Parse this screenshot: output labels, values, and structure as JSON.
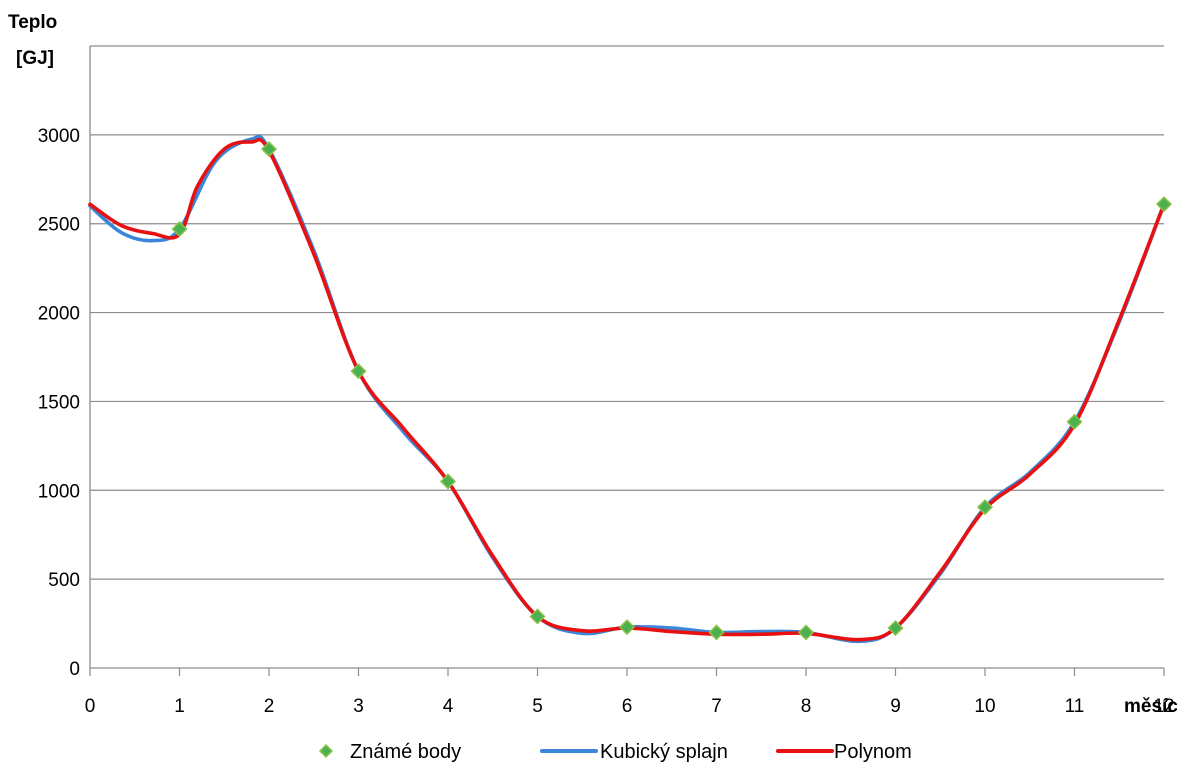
{
  "chart_data": {
    "type": "line",
    "ylabel_line1": "Teplo",
    "ylabel_line2": "[GJ]",
    "xlabel": "měsíc",
    "xlim": [
      0,
      12
    ],
    "ylim": [
      0,
      3500
    ],
    "y_ticks": [
      0,
      500,
      1000,
      1500,
      2000,
      2500,
      3000
    ],
    "x_ticks": [
      0,
      1,
      2,
      3,
      4,
      5,
      6,
      7,
      8,
      9,
      10,
      11,
      12
    ],
    "grid": true,
    "legend_position": "bottom",
    "series": [
      {
        "name": "Známé body",
        "kind": "markers",
        "color": "#6ab04c",
        "marker_color": "#4caf50",
        "x": [
          1,
          2,
          3,
          4,
          5,
          6,
          7,
          8,
          9,
          10,
          11,
          12
        ],
        "y": [
          2470,
          2920,
          1670,
          1050,
          290,
          230,
          200,
          200,
          225,
          905,
          1385,
          2610
        ]
      },
      {
        "name": "Kubický splajn",
        "kind": "line",
        "color": "#3a86d8",
        "x": [
          0,
          0.35,
          0.7,
          1,
          1.4,
          1.8,
          2,
          2.5,
          3,
          3.5,
          4,
          4.5,
          5,
          5.5,
          6,
          6.5,
          7,
          7.5,
          8,
          8.6,
          9,
          9.5,
          10,
          10.5,
          11,
          11.5,
          12
        ],
        "y": [
          2600,
          2450,
          2405,
          2470,
          2850,
          2975,
          2920,
          2350,
          1670,
          1330,
          1050,
          620,
          290,
          195,
          230,
          225,
          200,
          205,
          200,
          150,
          225,
          530,
          905,
          1100,
          1385,
          1950,
          2610
        ]
      },
      {
        "name": "Polynom",
        "kind": "line",
        "color": "#e81010",
        "x": [
          0,
          0.35,
          0.7,
          1,
          1.2,
          1.5,
          1.8,
          2,
          2.5,
          3,
          3.5,
          4,
          4.5,
          5,
          5.5,
          6,
          6.5,
          7,
          7.5,
          8,
          8.6,
          9,
          9.5,
          10,
          10.5,
          11,
          11.5,
          12
        ],
        "y": [
          2610,
          2490,
          2445,
          2440,
          2710,
          2920,
          2960,
          2910,
          2330,
          1670,
          1350,
          1050,
          630,
          290,
          210,
          225,
          205,
          190,
          190,
          195,
          160,
          225,
          540,
          895,
          1090,
          1370,
          1960,
          2610
        ]
      }
    ]
  }
}
